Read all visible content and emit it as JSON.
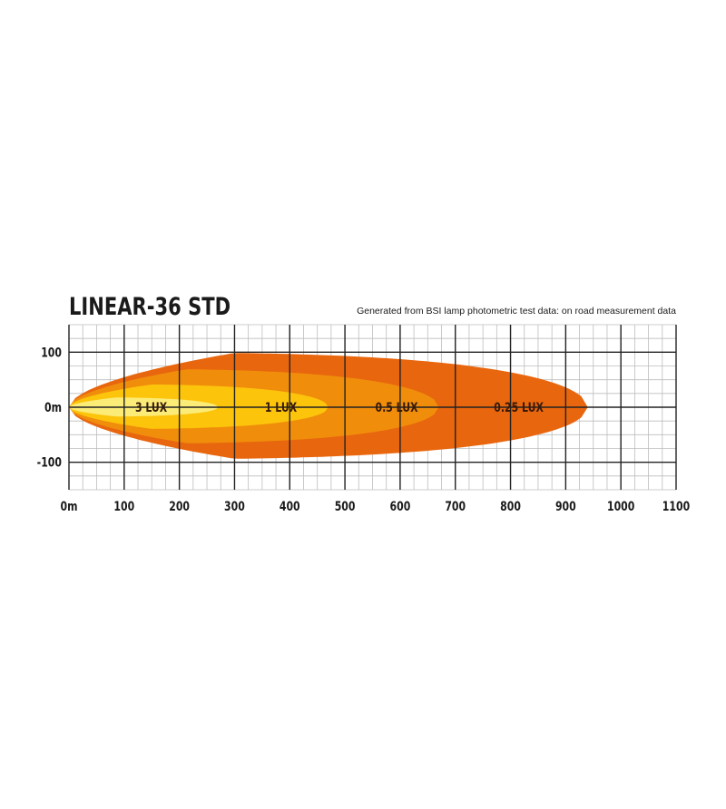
{
  "chart_data": {
    "type": "area",
    "title": "LINEAR-36 STD",
    "subtitle": "Generated from BSI lamp photometric test data: on road measurement data",
    "xlabel": "",
    "ylabel": "",
    "xlim": [
      0,
      1100
    ],
    "ylim": [
      -150,
      150
    ],
    "x_ticks": [
      {
        "value": 0,
        "label": "0m"
      },
      {
        "value": 100,
        "label": "100"
      },
      {
        "value": 200,
        "label": "200"
      },
      {
        "value": 300,
        "label": "300"
      },
      {
        "value": 400,
        "label": "400"
      },
      {
        "value": 500,
        "label": "500"
      },
      {
        "value": 600,
        "label": "600"
      },
      {
        "value": 700,
        "label": "700"
      },
      {
        "value": 800,
        "label": "800"
      },
      {
        "value": 900,
        "label": "900"
      },
      {
        "value": 1000,
        "label": "1000"
      },
      {
        "value": 1100,
        "label": "1100"
      }
    ],
    "y_ticks": [
      {
        "value": 100,
        "label": "100"
      },
      {
        "value": 0,
        "label": "0m"
      },
      {
        "value": -100,
        "label": "-100"
      }
    ],
    "grid": true,
    "minor_grid_step": 25,
    "major_grid_step": 100,
    "series": [
      {
        "name": "0.25 LUX",
        "reach": 940,
        "half_width": 100,
        "label_x": 770,
        "color": "#E8660E"
      },
      {
        "name": "0.5 LUX",
        "reach": 670,
        "half_width": 70,
        "label_x": 555,
        "color": "#F08D0B"
      },
      {
        "name": "1 LUX",
        "reach": 470,
        "half_width": 42,
        "label_x": 355,
        "color": "#FCC40B"
      },
      {
        "name": "3 LUX",
        "reach": 270,
        "half_width": 18,
        "label_x": 120,
        "color": "#FBEC78"
      }
    ]
  }
}
